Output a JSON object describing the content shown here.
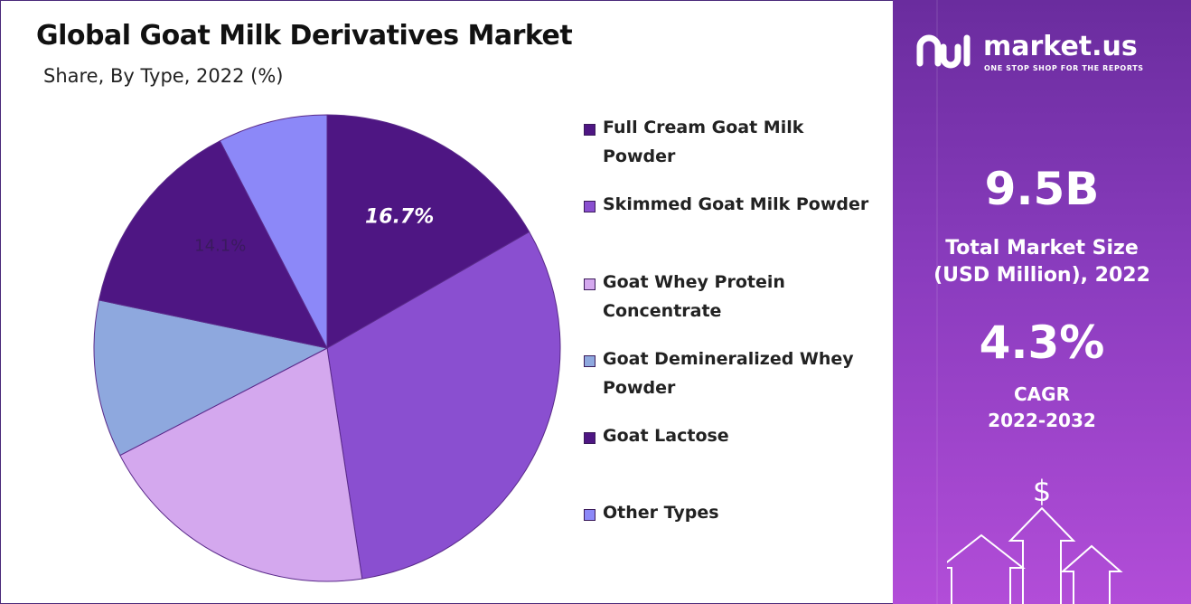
{
  "title": "Global Goat Milk Derivatives Market",
  "subtitle": "Share, By Type, 2022 (%)",
  "chart_data": {
    "type": "pie",
    "title": "Global Goat Milk Derivatives Market",
    "subtitle": "Share, By Type, 2022 (%)",
    "categories": [
      "Full Cream Goat Milk Powder",
      "Skimmed Goat Milk Powder",
      "Goat Whey Protein Concentrate",
      "Goat Demineralized Whey Powder",
      "Goat Lactose",
      "Other Types"
    ],
    "values": [
      16.7,
      30.9,
      19.8,
      10.9,
      14.1,
      7.6
    ],
    "data_labels": [
      "16.7%",
      "",
      "",
      "",
      "14.1%",
      ""
    ],
    "colors": [
      "#4e1683",
      "#8a4fd0",
      "#d4a8ee",
      "#8ea8de",
      "#4e1683",
      "#8c88f8"
    ],
    "legend_placement": "right"
  },
  "legend": [
    {
      "label_line1": "Full Cream Goat Milk",
      "label_line2": "Powder",
      "color": "#4e1683"
    },
    {
      "label_line1": "Skimmed Goat Milk Powder",
      "label_line2": "",
      "color": "#8a4fd0"
    },
    {
      "label_line1": "Goat Whey Protein",
      "label_line2": "Concentrate",
      "color": "#d4a8ee"
    },
    {
      "label_line1": "Goat Demineralized Whey",
      "label_line2": "Powder",
      "color": "#8ea8de"
    },
    {
      "label_line1": "Goat Lactose",
      "label_line2": "",
      "color": "#4e1683"
    },
    {
      "label_line1": "Other Types",
      "label_line2": "",
      "color": "#8c88f8"
    }
  ],
  "panel": {
    "logo_text": "market.us",
    "logo_tagline": "ONE STOP SHOP FOR THE REPORTS",
    "market_size_value": "9.5B",
    "market_size_label_1": "Total Market Size",
    "market_size_label_2": "(USD Million), 2022",
    "cagr_value": "4.3%",
    "cagr_label": "CAGR",
    "cagr_period": "2022-2032",
    "dollar_icon": "dollar-icon",
    "arrows_icon": "growth-arrows-icon"
  }
}
